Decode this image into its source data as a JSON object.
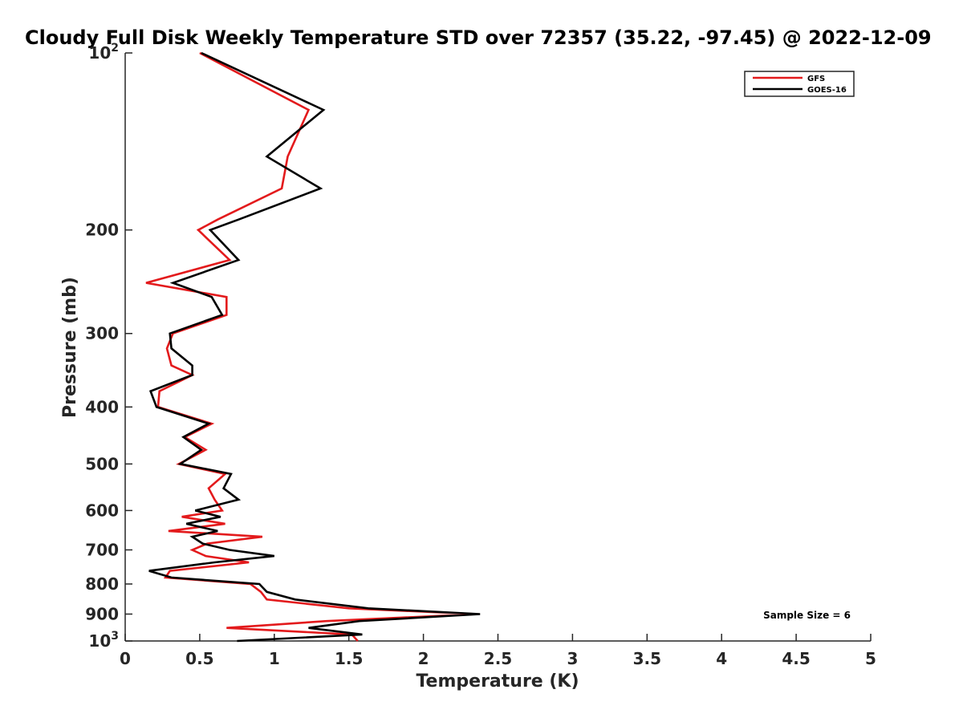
{
  "chart_data": {
    "type": "line",
    "title": "Cloudy Full Disk Weekly Temperature STD over 72357 (35.22, -97.45) @ 2022-12-09",
    "xlabel": "Temperature (K)",
    "ylabel": "Pressure (mb)",
    "xlim": [
      0,
      5
    ],
    "ylim": [
      100,
      1000
    ],
    "yscale": "log",
    "y_reversed": true,
    "grid": false,
    "legend_position": "top-right",
    "x_ticks": [
      {
        "value": 0,
        "label": "0"
      },
      {
        "value": 0.5,
        "label": "0.5"
      },
      {
        "value": 1,
        "label": "1"
      },
      {
        "value": 1.5,
        "label": "1.5"
      },
      {
        "value": 2,
        "label": "2"
      },
      {
        "value": 2.5,
        "label": "2.5"
      },
      {
        "value": 3,
        "label": "3"
      },
      {
        "value": 3.5,
        "label": "3.5"
      },
      {
        "value": 4,
        "label": "4"
      },
      {
        "value": 4.5,
        "label": "4.5"
      },
      {
        "value": 5,
        "label": "5"
      }
    ],
    "y_ticks": [
      {
        "value": 100,
        "label": "10",
        "sup": "2"
      },
      {
        "value": 200,
        "label": "200",
        "sup": ""
      },
      {
        "value": 300,
        "label": "300",
        "sup": ""
      },
      {
        "value": 400,
        "label": "400",
        "sup": ""
      },
      {
        "value": 500,
        "label": "500",
        "sup": ""
      },
      {
        "value": 600,
        "label": "600",
        "sup": ""
      },
      {
        "value": 700,
        "label": "700",
        "sup": ""
      },
      {
        "value": 800,
        "label": "800",
        "sup": ""
      },
      {
        "value": 900,
        "label": "900",
        "sup": ""
      },
      {
        "value": 1000,
        "label": "10",
        "sup": "3"
      }
    ],
    "series": [
      {
        "name": "GFS",
        "color": "#e31a1c",
        "points": [
          [
            0.5,
            100
          ],
          [
            1.23,
            125
          ],
          [
            1.09,
            150
          ],
          [
            1.05,
            170
          ],
          [
            0.62,
            192
          ],
          [
            0.49,
            200
          ],
          [
            0.7,
            225
          ],
          [
            0.14,
            246
          ],
          [
            0.68,
            260
          ],
          [
            0.68,
            279
          ],
          [
            0.32,
            300
          ],
          [
            0.28,
            318
          ],
          [
            0.31,
            340
          ],
          [
            0.45,
            353
          ],
          [
            0.23,
            376
          ],
          [
            0.22,
            400
          ],
          [
            0.58,
            427
          ],
          [
            0.4,
            450
          ],
          [
            0.54,
            473
          ],
          [
            0.36,
            500
          ],
          [
            0.67,
            520
          ],
          [
            0.56,
            550
          ],
          [
            0.6,
            575
          ],
          [
            0.65,
            600
          ],
          [
            0.38,
            615
          ],
          [
            0.67,
            632
          ],
          [
            0.29,
            650
          ],
          [
            0.92,
            665
          ],
          [
            0.55,
            683
          ],
          [
            0.45,
            700
          ],
          [
            0.54,
            717
          ],
          [
            0.83,
            735
          ],
          [
            0.3,
            760
          ],
          [
            0.27,
            780
          ],
          [
            0.84,
            800
          ],
          [
            0.91,
            825
          ],
          [
            0.95,
            850
          ],
          [
            1.5,
            880
          ],
          [
            2.36,
            900
          ],
          [
            1.35,
            925
          ],
          [
            0.68,
            950
          ],
          [
            1.52,
            975
          ],
          [
            1.56,
            1000
          ]
        ]
      },
      {
        "name": "GOES-16",
        "color": "#000000",
        "points": [
          [
            0.51,
            100
          ],
          [
            1.33,
            125
          ],
          [
            0.95,
            150
          ],
          [
            1.31,
            170
          ],
          [
            0.76,
            192
          ],
          [
            0.57,
            200
          ],
          [
            0.76,
            225
          ],
          [
            0.32,
            246
          ],
          [
            0.58,
            260
          ],
          [
            0.65,
            279
          ],
          [
            0.3,
            300
          ],
          [
            0.31,
            318
          ],
          [
            0.45,
            340
          ],
          [
            0.45,
            353
          ],
          [
            0.17,
            376
          ],
          [
            0.21,
            400
          ],
          [
            0.56,
            427
          ],
          [
            0.39,
            450
          ],
          [
            0.51,
            473
          ],
          [
            0.37,
            500
          ],
          [
            0.71,
            520
          ],
          [
            0.66,
            550
          ],
          [
            0.76,
            575
          ],
          [
            0.47,
            600
          ],
          [
            0.64,
            615
          ],
          [
            0.41,
            632
          ],
          [
            0.62,
            650
          ],
          [
            0.45,
            665
          ],
          [
            0.52,
            683
          ],
          [
            0.7,
            700
          ],
          [
            1.0,
            717
          ],
          [
            0.6,
            735
          ],
          [
            0.16,
            760
          ],
          [
            0.31,
            780
          ],
          [
            0.9,
            800
          ],
          [
            0.95,
            825
          ],
          [
            1.14,
            850
          ],
          [
            1.63,
            880
          ],
          [
            2.38,
            900
          ],
          [
            1.57,
            925
          ],
          [
            1.23,
            950
          ],
          [
            1.59,
            975
          ],
          [
            0.75,
            1000
          ]
        ]
      }
    ],
    "annotation": "Sample Size = 6"
  }
}
